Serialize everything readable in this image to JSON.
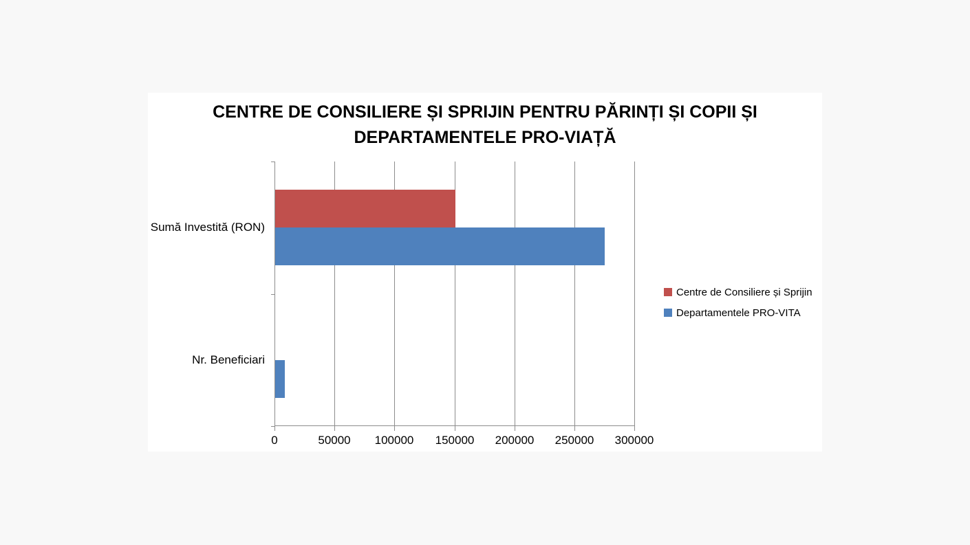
{
  "page": {
    "background_color": "#f8f8f8",
    "chart_background_color": "#ffffff"
  },
  "chart_data": {
    "type": "bar",
    "orientation": "horizontal",
    "title": "CENTRE DE CONSILIERE ȘI SPRIJIN PENTRU PĂRINȚI ȘI COPII ȘI DEPARTAMENTELE PRO-VIAȚĂ",
    "title_lines": [
      "CENTRE DE CONSILIERE ȘI SPRIJIN PENTRU PĂRINȚI ȘI COPII ȘI",
      "DEPARTAMENTELE PRO-VIAȚĂ"
    ],
    "categories": [
      "Sumă Investită (RON)",
      "Nr. Beneficiari"
    ],
    "series": [
      {
        "name": "Centre de Consiliere și Sprijin",
        "color": "#C0504D",
        "values": [
          150000,
          0
        ]
      },
      {
        "name": "Departamentele PRO-VITA",
        "color": "#4F81BD",
        "values": [
          275000,
          8000
        ]
      }
    ],
    "xlim": [
      0,
      300000
    ],
    "x_ticks": [
      0,
      50000,
      100000,
      150000,
      200000,
      250000,
      300000
    ],
    "x_tick_labels": [
      "0",
      "50000",
      "100000",
      "150000",
      "200000",
      "250000",
      "300000"
    ],
    "xlabel": "",
    "ylabel": "",
    "grid": "vertical",
    "gridline_color": "#8c8c8c",
    "axis_color": "#8c8c8c",
    "legend_position": "right"
  }
}
